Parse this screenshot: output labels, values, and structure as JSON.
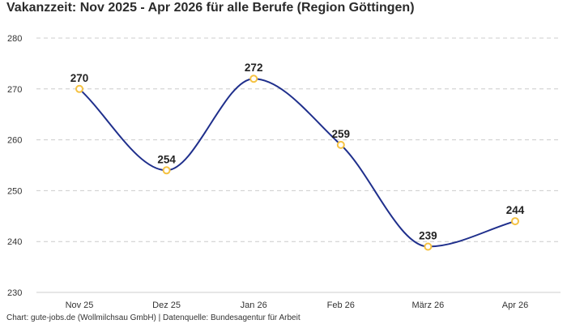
{
  "chart_data": {
    "type": "line",
    "title": "Vakanzzeit: Nov 2025 - Apr 2026 für alle Berufe (Region Göttingen)",
    "source": "Chart: gute-jobs.de (Wollmilchsau GmbH) | Datenquelle: Bundesagentur für Arbeit",
    "categories": [
      "Nov 25",
      "Dez 25",
      "Jan 26",
      "Feb 26",
      "März 26",
      "Apr 26"
    ],
    "series": [
      {
        "values": [
          270,
          254,
          272,
          259,
          239,
          244
        ]
      }
    ],
    "ylim": [
      230,
      280
    ],
    "yticks": [
      230,
      240,
      250,
      260,
      270,
      280
    ],
    "xlabel": "",
    "ylabel": "",
    "grid": true,
    "smooth": true,
    "data_labels": true,
    "colors": {
      "line": "#1f2f8c",
      "marker_stroke": "#f5c242",
      "marker_fill": "#ffffff",
      "grid": "#cccccc"
    }
  }
}
